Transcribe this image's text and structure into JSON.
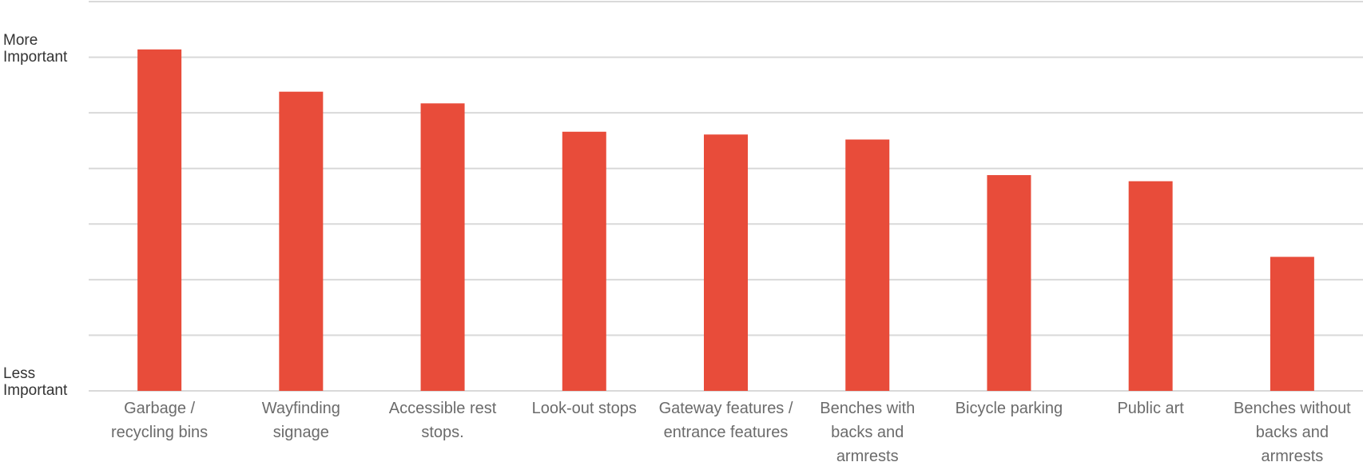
{
  "chart_data": {
    "type": "bar",
    "categories": [
      "Garbage / recycling bins",
      "Wayfinding signage",
      "Accessible rest stops.",
      "Look-out stops",
      "Gateway features / entrance features",
      "Benches with backs and armrests",
      "Bicycle parking",
      "Public art",
      "Benches without backs and armrests"
    ],
    "values": [
      6.14,
      5.38,
      5.17,
      4.66,
      4.61,
      4.52,
      3.88,
      3.77,
      2.41
    ],
    "color": "#e84c3a",
    "ylim": [
      0,
      7
    ],
    "yticks": [
      {
        "value": 0,
        "label": "Less Important"
      },
      {
        "value": 6,
        "label": "More Important"
      }
    ],
    "ygrid": [
      0,
      1,
      2,
      3,
      4,
      5,
      6,
      7
    ],
    "grid": true
  }
}
